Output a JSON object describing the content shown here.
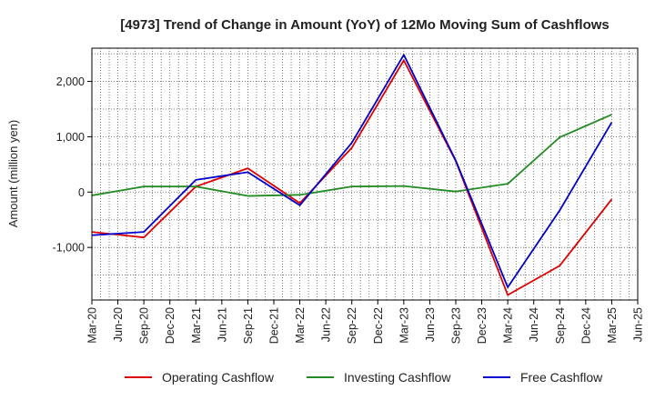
{
  "chart_data": {
    "type": "line",
    "title": "[4973]  Trend of Change in Amount (YoY) of 12Mo Moving Sum of Cashflows",
    "xlabel": "",
    "ylabel": "Amount (million yen)",
    "ylim": [
      -1950,
      2600
    ],
    "yticks": [
      -1000,
      0,
      1000,
      2000
    ],
    "ytick_labels": [
      "-1,000",
      "0",
      "1,000",
      "2,000"
    ],
    "categories": [
      "Mar-20",
      "Jun-20",
      "Sep-20",
      "Dec-20",
      "Mar-21",
      "Jun-21",
      "Sep-21",
      "Dec-21",
      "Mar-22",
      "Jun-22",
      "Sep-22",
      "Dec-22",
      "Mar-23",
      "Jun-23",
      "Sep-23",
      "Dec-23",
      "Mar-24",
      "Jun-24",
      "Sep-24",
      "Dec-24",
      "Mar-25",
      "Jun-25"
    ],
    "grid": true,
    "legend_position": "bottom",
    "series": [
      {
        "name": "Operating Cashflow",
        "color": "#dd0000",
        "x": [
          "Mar-20",
          "Sep-20",
          "Mar-21",
          "Sep-21",
          "Mar-22",
          "Sep-22",
          "Mar-23",
          "Sep-23",
          "Mar-24",
          "Sep-24",
          "Mar-25"
        ],
        "values": [
          -720,
          -820,
          100,
          430,
          -200,
          800,
          2380,
          560,
          -1860,
          -1330,
          -130
        ]
      },
      {
        "name": "Investing Cashflow",
        "color": "#228b22",
        "x": [
          "Mar-20",
          "Sep-20",
          "Mar-21",
          "Sep-21",
          "Mar-22",
          "Sep-22",
          "Mar-23",
          "Sep-23",
          "Mar-24",
          "Sep-24",
          "Mar-25"
        ],
        "values": [
          -60,
          100,
          100,
          -70,
          -50,
          100,
          110,
          10,
          150,
          990,
          1400
        ]
      },
      {
        "name": "Free Cashflow",
        "color": "#0000cc",
        "x": [
          "Mar-20",
          "Sep-20",
          "Mar-21",
          "Sep-21",
          "Mar-22",
          "Sep-22",
          "Mar-23",
          "Sep-23",
          "Mar-24",
          "Sep-24",
          "Mar-25"
        ],
        "values": [
          -780,
          -720,
          220,
          360,
          -240,
          890,
          2480,
          570,
          -1720,
          -330,
          1260
        ]
      }
    ]
  }
}
